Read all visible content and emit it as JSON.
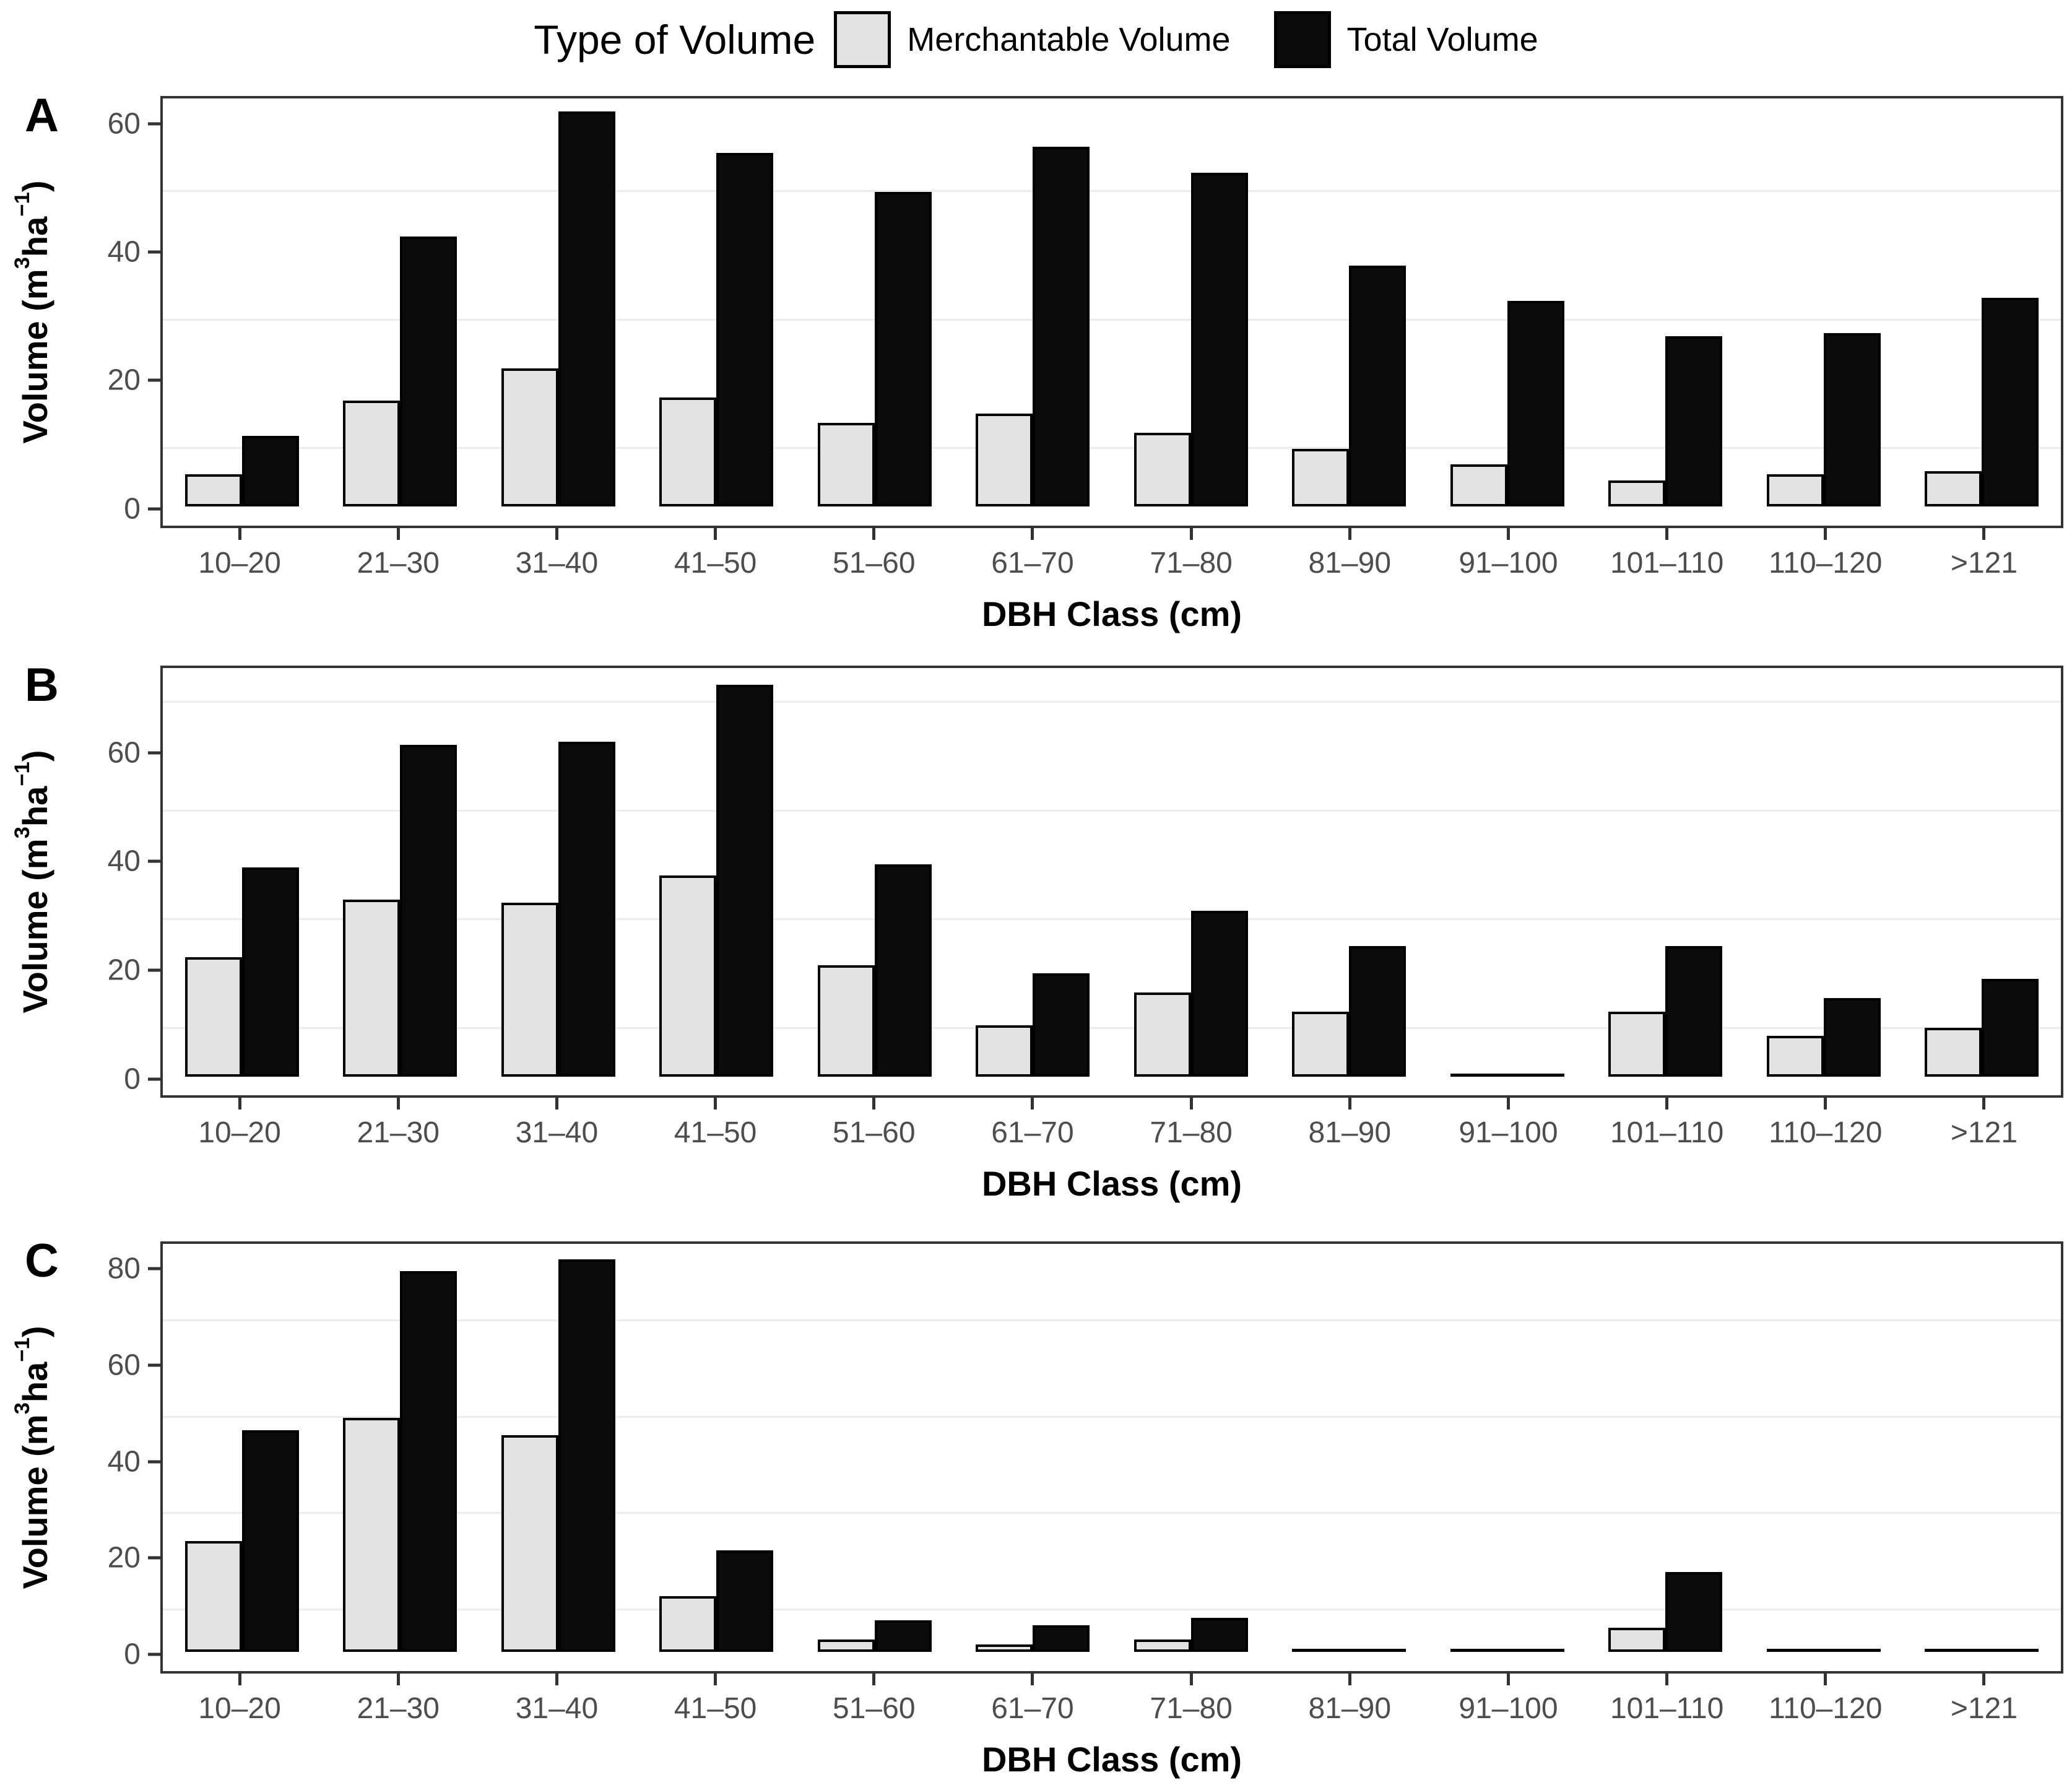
{
  "colors": {
    "background": "#ffffff",
    "merchantable_fill": "#e3e3e3",
    "total_fill": "#0b0b0b",
    "bar_stroke": "#000000",
    "gridline": "#ececec",
    "frame": "#333333",
    "tick_label": "#4d4d4d",
    "title_text": "#000000"
  },
  "legend": {
    "title": "Type of Volume",
    "entries": [
      {
        "label": "Merchantable Volume",
        "fill": "#e3e3e3"
      },
      {
        "label": "Total Volume",
        "fill": "#0b0b0b"
      }
    ]
  },
  "x_axis_title": "DBH Class (cm)",
  "y_axis_title": "Volume (m³ ha⁻¹)",
  "y_axis_title_parts": [
    {
      "text": "Volume (m"
    },
    {
      "text": "3",
      "sup": true
    },
    {
      "text": " ha"
    },
    {
      "text": "−1",
      "sup": true
    },
    {
      "text": ")"
    }
  ],
  "categories": [
    "10–20",
    "21–30",
    "31–40",
    "41–50",
    "51–60",
    "61–70",
    "71–80",
    "81–90",
    "91–100",
    "101–110",
    "110–120",
    ">121"
  ],
  "chart_data": [
    {
      "panel": "A",
      "type": "bar",
      "title": "",
      "xlabel": "DBH Class (cm)",
      "ylabel": "Volume (m³ ha⁻¹)",
      "categories": [
        "10–20",
        "21–30",
        "31–40",
        "41–50",
        "51–60",
        "61–70",
        "71–80",
        "81–90",
        "91–100",
        "101–110",
        "110–120",
        ">121"
      ],
      "series": [
        {
          "name": "Merchantable Volume",
          "values": [
            5,
            16.5,
            21.5,
            17,
            13,
            14.5,
            11.5,
            9,
            6.5,
            4,
            5,
            5.5
          ]
        },
        {
          "name": "Total Volume",
          "values": [
            11,
            42,
            61.5,
            55,
            49,
            56,
            52,
            37.5,
            32,
            26.5,
            27,
            32.5
          ]
        }
      ],
      "ylim": [
        -3.0,
        64.3
      ],
      "yticks": [
        0,
        20,
        40,
        60
      ],
      "minor_gridlines": [
        10,
        30,
        50
      ],
      "grid": "minor-horizontal-only",
      "legend_position": "top"
    },
    {
      "panel": "B",
      "type": "bar",
      "title": "",
      "xlabel": "DBH Class (cm)",
      "ylabel": "Volume (m³ ha⁻¹)",
      "categories": [
        "10–20",
        "21–30",
        "31–40",
        "41–50",
        "51–60",
        "61–70",
        "71–80",
        "81–90",
        "91–100",
        "101–110",
        "110–120",
        ">121"
      ],
      "series": [
        {
          "name": "Merchantable Volume",
          "values": [
            22,
            32.5,
            32,
            37,
            20.5,
            9.5,
            15.5,
            12,
            0,
            12,
            7.5,
            9
          ]
        },
        {
          "name": "Total Volume",
          "values": [
            38.5,
            61,
            61.5,
            72,
            39,
            19,
            30.5,
            24,
            0.3,
            24,
            14.5,
            18
          ]
        }
      ],
      "ylim": [
        -3.4,
        76.0
      ],
      "yticks": [
        0,
        20,
        40,
        60
      ],
      "minor_gridlines": [
        10,
        30,
        50,
        70
      ],
      "grid": "minor-horizontal-only",
      "legend_position": "top"
    },
    {
      "panel": "C",
      "type": "bar",
      "title": "",
      "xlabel": "DBH Class (cm)",
      "ylabel": "Volume (m³ ha⁻¹)",
      "categories": [
        "10–20",
        "21–30",
        "31–40",
        "41–50",
        "51–60",
        "61–70",
        "71–80",
        "81–90",
        "91–100",
        "101–110",
        "110–120",
        ">121"
      ],
      "series": [
        {
          "name": "Merchantable Volume",
          "values": [
            23,
            48.5,
            45,
            11.5,
            2.5,
            1.5,
            2.5,
            0,
            0,
            5,
            0,
            0
          ]
        },
        {
          "name": "Total Volume",
          "values": [
            46,
            79,
            81.5,
            21,
            6.5,
            5.5,
            7,
            0.3,
            0.3,
            16.5,
            0.3,
            0.3
          ]
        }
      ],
      "ylim": [
        -4.0,
        85.7
      ],
      "yticks": [
        0,
        20,
        40,
        60,
        80
      ],
      "minor_gridlines": [
        10,
        30,
        50,
        70
      ],
      "grid": "minor-horizontal-only",
      "legend_position": "top"
    }
  ]
}
